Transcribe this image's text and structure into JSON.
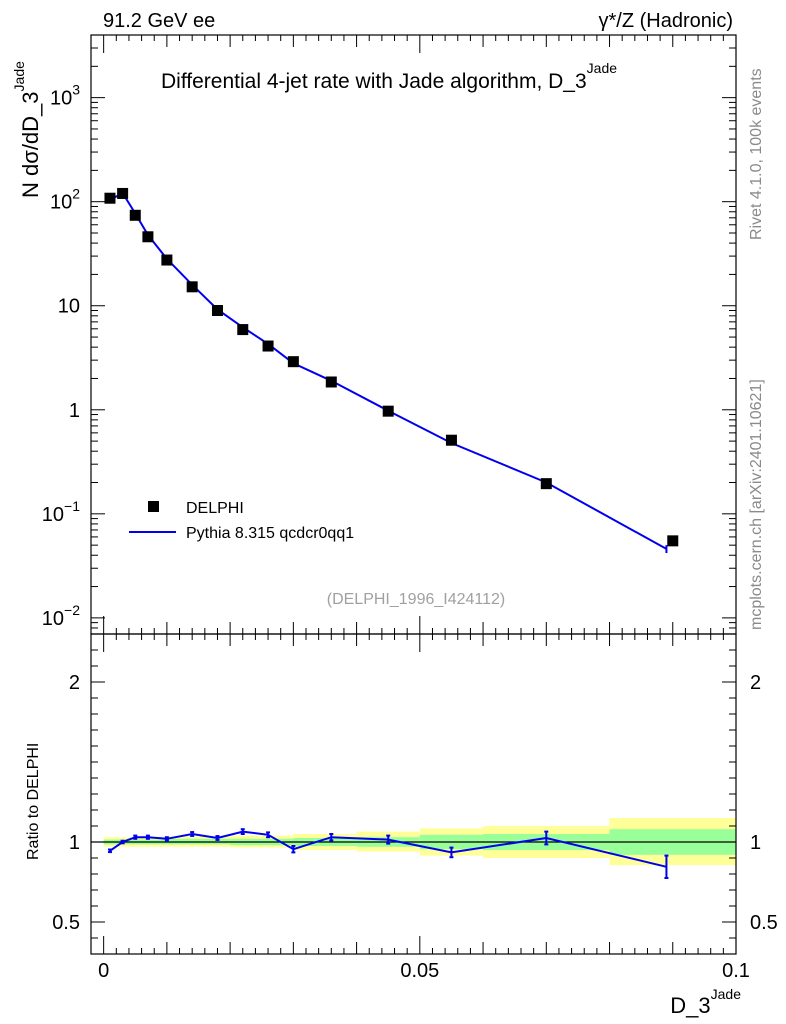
{
  "header": {
    "left": "91.2 GeV ee",
    "right": "γ*/Z (Hadronic)"
  },
  "side_text": {
    "rivet": "Rivet 4.1.0,  100k events",
    "mcplots": "mcplots.cern.ch [arXiv:2401.10621]"
  },
  "chart_data": [
    {
      "type": "scatter",
      "panel": "main",
      "title": "Differential 4-jet rate with Jade algorithm, D_3^Jade",
      "title_main": "Differential 4-jet rate with Jade algorithm, D_3",
      "title_sup": "Jade",
      "ylabel_main": "N  dσ/dD_3",
      "ylabel_sup": "Jade",
      "yscale": "log",
      "ylim": [
        0.007,
        4000
      ],
      "xlim": [
        -0.002,
        0.1
      ],
      "watermark": "(DELPHI_1996_I424112)",
      "y_tick_labels": [
        {
          "value": 0.01,
          "base": "10",
          "exp": "−2"
        },
        {
          "value": 0.1,
          "base": "10",
          "exp": "−1"
        },
        {
          "value": 1,
          "base": "1",
          "exp": ""
        },
        {
          "value": 10,
          "base": "10",
          "exp": ""
        },
        {
          "value": 100,
          "base": "10",
          "exp": "2"
        },
        {
          "value": 1000,
          "base": "10",
          "exp": "3"
        }
      ],
      "legend": [
        {
          "name": "DELPHI",
          "style": "marker",
          "color": "#000000"
        },
        {
          "name": "Pythia 8.315 qcdcr0qq1",
          "style": "line",
          "color": "#0000ee"
        }
      ],
      "series": [
        {
          "name": "DELPHI",
          "marker": "square",
          "color": "#000000",
          "x": [
            0.001,
            0.003,
            0.005,
            0.007,
            0.01,
            0.014,
            0.018,
            0.022,
            0.026,
            0.03,
            0.036,
            0.045,
            0.055,
            0.07,
            0.09
          ],
          "y": [
            108,
            120,
            74,
            46,
            27.5,
            15.2,
            9.0,
            5.9,
            4.1,
            2.9,
            1.85,
            0.97,
            0.51,
            0.195,
            0.055
          ]
        },
        {
          "name": "Pythia 8.315 qcdcr0qq1",
          "marker": "line",
          "color": "#0000ee",
          "x": [
            0.001,
            0.003,
            0.005,
            0.007,
            0.01,
            0.014,
            0.018,
            0.022,
            0.026,
            0.03,
            0.036,
            0.045,
            0.055,
            0.07,
            0.089
          ],
          "y": [
            104,
            121,
            77,
            48,
            28.2,
            15.9,
            9.2,
            6.2,
            4.3,
            2.8,
            1.9,
            0.98,
            0.48,
            0.2,
            0.046
          ],
          "yerr": [
            0,
            0,
            0,
            0,
            0,
            0,
            0,
            0,
            0,
            0,
            0,
            0,
            0.02,
            0.008,
            0.004
          ]
        }
      ]
    },
    {
      "type": "line",
      "panel": "ratio",
      "xlabel": "D_3",
      "xlabel_sup": "Jade",
      "ylabel": "Ratio to DELPHI",
      "ylim": [
        0.3,
        2.3
      ],
      "xlim": [
        -0.002,
        0.1
      ],
      "x_tick_labels": [
        {
          "value": 0,
          "label": "0"
        },
        {
          "value": 0.05,
          "label": "0.05"
        },
        {
          "value": 0.1,
          "label": "0.1"
        }
      ],
      "y_tick_labels": [
        {
          "value": 0.5,
          "label": "0.5"
        },
        {
          "value": 1,
          "label": "1"
        },
        {
          "value": 2,
          "label": "2"
        }
      ],
      "bands": [
        {
          "x0": 0.0,
          "x1": 0.01,
          "green": [
            0.985,
            1.015
          ],
          "yellow": [
            0.97,
            1.03
          ]
        },
        {
          "x0": 0.01,
          "x1": 0.02,
          "green": [
            0.985,
            1.02
          ],
          "yellow": [
            0.97,
            1.035
          ]
        },
        {
          "x0": 0.02,
          "x1": 0.03,
          "green": [
            0.98,
            1.02
          ],
          "yellow": [
            0.965,
            1.04
          ]
        },
        {
          "x0": 0.03,
          "x1": 0.04,
          "green": [
            0.975,
            1.025
          ],
          "yellow": [
            0.95,
            1.05
          ]
        },
        {
          "x0": 0.04,
          "x1": 0.05,
          "green": [
            0.97,
            1.03
          ],
          "yellow": [
            0.94,
            1.065
          ]
        },
        {
          "x0": 0.05,
          "x1": 0.06,
          "green": [
            0.955,
            1.045
          ],
          "yellow": [
            0.915,
            1.085
          ]
        },
        {
          "x0": 0.06,
          "x1": 0.08,
          "green": [
            0.95,
            1.05
          ],
          "yellow": [
            0.9,
            1.1
          ]
        },
        {
          "x0": 0.08,
          "x1": 0.1,
          "green": [
            0.92,
            1.08
          ],
          "yellow": [
            0.855,
            1.15
          ]
        }
      ],
      "series": [
        {
          "name": "Pythia 8.315 qcdcr0qq1 / DELPHI",
          "color": "#0000ee",
          "x": [
            0.001,
            0.003,
            0.005,
            0.007,
            0.01,
            0.014,
            0.018,
            0.022,
            0.026,
            0.03,
            0.036,
            0.045,
            0.055,
            0.07,
            0.089
          ],
          "y": [
            0.945,
            1.0,
            1.03,
            1.03,
            1.02,
            1.05,
            1.025,
            1.065,
            1.045,
            0.955,
            1.03,
            1.015,
            0.935,
            1.025,
            0.845
          ],
          "yerr": [
            0.008,
            0.008,
            0.01,
            0.01,
            0.01,
            0.012,
            0.012,
            0.015,
            0.015,
            0.02,
            0.02,
            0.025,
            0.03,
            0.04,
            0.07
          ]
        }
      ]
    }
  ]
}
